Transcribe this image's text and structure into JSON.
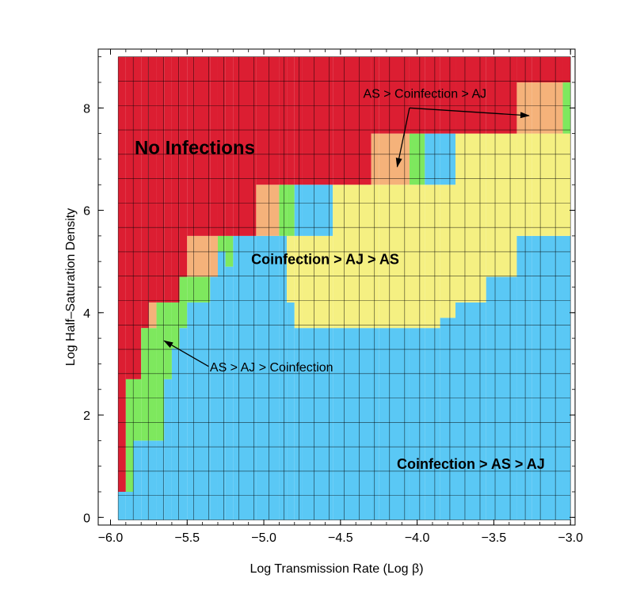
{
  "chart_data": {
    "type": "heatmap",
    "title": "",
    "xlabel": "Log Transmission Rate (Log β)",
    "ylabel": "Log Half–Saturation Density",
    "xlim": [
      -6.0,
      -3.0
    ],
    "ylim": [
      0,
      9
    ],
    "x_ticks": [
      -6.0,
      -5.5,
      -5.0,
      -4.5,
      -4.0,
      -3.5,
      -3.0
    ],
    "x_tick_labels": [
      "−6.0",
      "−5.5",
      "−5.0",
      "−4.5",
      "−4.0",
      "−3.5",
      "−3.0"
    ],
    "y_ticks": [
      0,
      2,
      4,
      6,
      8
    ],
    "y_tick_labels": [
      "0",
      "2",
      "4",
      "6",
      "8"
    ],
    "grid": true,
    "colors": {
      "No Infections": "#dc1e32",
      "AS > Coinfection > AJ": "#f5b27a",
      "AS > AJ > Coinfection": "#7ee85e",
      "Coinfection > AJ > AS": "#f5f082",
      "Coinfection > AS > AJ": "#5ac8f5"
    },
    "grid_x_range": [
      -5.95,
      -3.0
    ],
    "grid_y_range": [
      -0.05,
      9.0
    ],
    "column_boundaries": [
      {
        "x_from": -5.95,
        "x_to": -5.9,
        "no_infection_above": 0.5,
        "regions": [
          {
            "from": -0.05,
            "to": 0.5,
            "outcome": "Coinfection > AS > AJ"
          }
        ]
      },
      {
        "x_from": -5.9,
        "x_to": -5.85,
        "no_infection_above": 2.7,
        "regions": [
          {
            "from": -0.05,
            "to": 0.5,
            "outcome": "Coinfection > AS > AJ"
          },
          {
            "from": 0.5,
            "to": 2.7,
            "outcome": "AS > AJ > Coinfection"
          }
        ]
      },
      {
        "x_from": -5.85,
        "x_to": -5.8,
        "no_infection_above": 2.7,
        "regions": [
          {
            "from": -0.05,
            "to": 1.5,
            "outcome": "Coinfection > AS > AJ"
          },
          {
            "from": 1.5,
            "to": 2.7,
            "outcome": "AS > AJ > Coinfection"
          }
        ]
      },
      {
        "x_from": -5.8,
        "x_to": -5.75,
        "no_infection_above": 3.7,
        "regions": [
          {
            "from": -0.05,
            "to": 1.5,
            "outcome": "Coinfection > AS > AJ"
          },
          {
            "from": 1.5,
            "to": 3.7,
            "outcome": "AS > AJ > Coinfection"
          }
        ]
      },
      {
        "x_from": -5.75,
        "x_to": -5.7,
        "no_infection_above": 4.2,
        "regions": [
          {
            "from": -0.05,
            "to": 1.5,
            "outcome": "Coinfection > AS > AJ"
          },
          {
            "from": 1.5,
            "to": 3.7,
            "outcome": "AS > AJ > Coinfection"
          },
          {
            "from": 3.7,
            "to": 4.2,
            "outcome": "AS > Coinfection > AJ"
          }
        ]
      },
      {
        "x_from": -5.7,
        "x_to": -5.65,
        "no_infection_above": 4.2,
        "regions": [
          {
            "from": -0.05,
            "to": 1.5,
            "outcome": "Coinfection > AS > AJ"
          },
          {
            "from": 1.5,
            "to": 4.2,
            "outcome": "AS > AJ > Coinfection"
          }
        ]
      },
      {
        "x_from": -5.65,
        "x_to": -5.6,
        "no_infection_above": 4.2,
        "regions": [
          {
            "from": -0.05,
            "to": 2.7,
            "outcome": "Coinfection > AS > AJ"
          },
          {
            "from": 2.7,
            "to": 4.2,
            "outcome": "AS > AJ > Coinfection"
          }
        ]
      },
      {
        "x_from": -5.6,
        "x_to": -5.55,
        "no_infection_above": 4.2,
        "regions": [
          {
            "from": -0.05,
            "to": 3.3,
            "outcome": "Coinfection > AS > AJ"
          },
          {
            "from": 3.3,
            "to": 4.2,
            "outcome": "AS > AJ > Coinfection"
          }
        ]
      },
      {
        "x_from": -5.55,
        "x_to": -5.5,
        "no_infection_above": 4.7,
        "regions": [
          {
            "from": -0.05,
            "to": 3.7,
            "outcome": "Coinfection > AS > AJ"
          },
          {
            "from": 3.7,
            "to": 4.7,
            "outcome": "AS > AJ > Coinfection"
          }
        ]
      },
      {
        "x_from": -5.5,
        "x_to": -5.45,
        "no_infection_above": 5.5,
        "regions": [
          {
            "from": -0.05,
            "to": 4.2,
            "outcome": "Coinfection > AS > AJ"
          },
          {
            "from": 4.2,
            "to": 4.7,
            "outcome": "AS > AJ > Coinfection"
          },
          {
            "from": 4.7,
            "to": 5.5,
            "outcome": "AS > Coinfection > AJ"
          }
        ]
      },
      {
        "x_from": -5.45,
        "x_to": -5.35,
        "no_infection_above": 5.5,
        "regions": [
          {
            "from": -0.05,
            "to": 4.2,
            "outcome": "Coinfection > AS > AJ"
          },
          {
            "from": 4.2,
            "to": 4.7,
            "outcome": "AS > AJ > Coinfection"
          },
          {
            "from": 4.7,
            "to": 5.5,
            "outcome": "AS > Coinfection > AJ"
          }
        ]
      },
      {
        "x_from": -5.35,
        "x_to": -5.3,
        "no_infection_above": 5.5,
        "regions": [
          {
            "from": -0.05,
            "to": 4.7,
            "outcome": "Coinfection > AS > AJ"
          },
          {
            "from": 4.7,
            "to": 5.5,
            "outcome": "AS > Coinfection > AJ"
          }
        ]
      },
      {
        "x_from": -5.3,
        "x_to": -5.25,
        "no_infection_above": 5.5,
        "regions": [
          {
            "from": -0.05,
            "to": 5.2,
            "outcome": "Coinfection > AS > AJ"
          },
          {
            "from": 5.2,
            "to": 5.5,
            "outcome": "AS > AJ > Coinfection"
          }
        ]
      },
      {
        "x_from": -5.25,
        "x_to": -5.2,
        "no_infection_above": 5.5,
        "regions": [
          {
            "from": -0.05,
            "to": 4.9,
            "outcome": "Coinfection > AS > AJ"
          },
          {
            "from": 4.9,
            "to": 5.5,
            "outcome": "AS > AJ > Coinfection"
          }
        ]
      },
      {
        "x_from": -5.2,
        "x_to": -5.05,
        "no_infection_above": 5.5,
        "regions": [
          {
            "from": -0.05,
            "to": 5.5,
            "outcome": "Coinfection > AS > AJ"
          }
        ]
      },
      {
        "x_from": -5.05,
        "x_to": -4.9,
        "no_infection_above": 6.5,
        "regions": [
          {
            "from": -0.05,
            "to": 5.5,
            "outcome": "Coinfection > AS > AJ"
          },
          {
            "from": 5.5,
            "to": 6.5,
            "outcome": "AS > Coinfection > AJ"
          }
        ]
      },
      {
        "x_from": -4.9,
        "x_to": -4.85,
        "no_infection_above": 6.5,
        "regions": [
          {
            "from": -0.05,
            "to": 5.5,
            "outcome": "Coinfection > AS > AJ"
          },
          {
            "from": 5.5,
            "to": 6.5,
            "outcome": "AS > AJ > Coinfection"
          }
        ]
      },
      {
        "x_from": -4.85,
        "x_to": -4.8,
        "no_infection_above": 6.5,
        "regions": [
          {
            "from": -0.05,
            "to": 4.2,
            "outcome": "Coinfection > AS > AJ"
          },
          {
            "from": 4.2,
            "to": 5.5,
            "outcome": "Coinfection > AJ > AS"
          },
          {
            "from": 5.5,
            "to": 6.5,
            "outcome": "AS > AJ > Coinfection"
          }
        ]
      },
      {
        "x_from": -4.8,
        "x_to": -4.75,
        "no_infection_above": 6.5,
        "regions": [
          {
            "from": -0.05,
            "to": 3.7,
            "outcome": "Coinfection > AS > AJ"
          },
          {
            "from": 3.7,
            "to": 5.5,
            "outcome": "Coinfection > AJ > AS"
          },
          {
            "from": 5.5,
            "to": 6.5,
            "outcome": "Coinfection > AS > AJ"
          }
        ]
      },
      {
        "x_from": -4.75,
        "x_to": -4.55,
        "no_infection_above": 6.5,
        "regions": [
          {
            "from": -0.05,
            "to": 3.7,
            "outcome": "Coinfection > AS > AJ"
          },
          {
            "from": 3.7,
            "to": 5.5,
            "outcome": "Coinfection > AJ > AS"
          },
          {
            "from": 5.5,
            "to": 6.5,
            "outcome": "Coinfection > AS > AJ"
          }
        ]
      },
      {
        "x_from": -4.55,
        "x_to": -4.3,
        "no_infection_above": 6.5,
        "regions": [
          {
            "from": -0.05,
            "to": 3.7,
            "outcome": "Coinfection > AS > AJ"
          },
          {
            "from": 3.7,
            "to": 6.5,
            "outcome": "Coinfection > AJ > AS"
          }
        ]
      },
      {
        "x_from": -4.3,
        "x_to": -4.25,
        "no_infection_above": 7.5,
        "regions": [
          {
            "from": -0.05,
            "to": 3.7,
            "outcome": "Coinfection > AS > AJ"
          },
          {
            "from": 3.7,
            "to": 6.5,
            "outcome": "Coinfection > AJ > AS"
          },
          {
            "from": 6.5,
            "to": 7.5,
            "outcome": "AS > Coinfection > AJ"
          }
        ]
      },
      {
        "x_from": -4.25,
        "x_to": -4.05,
        "no_infection_above": 7.5,
        "regions": [
          {
            "from": -0.05,
            "to": 3.7,
            "outcome": "Coinfection > AS > AJ"
          },
          {
            "from": 3.7,
            "to": 6.5,
            "outcome": "Coinfection > AJ > AS"
          },
          {
            "from": 6.5,
            "to": 7.5,
            "outcome": "AS > Coinfection > AJ"
          }
        ]
      },
      {
        "x_from": -4.05,
        "x_to": -3.95,
        "no_infection_above": 7.5,
        "regions": [
          {
            "from": -0.05,
            "to": 3.7,
            "outcome": "Coinfection > AS > AJ"
          },
          {
            "from": 3.7,
            "to": 6.5,
            "outcome": "Coinfection > AJ > AS"
          },
          {
            "from": 6.5,
            "to": 7.5,
            "outcome": "AS > AJ > Coinfection"
          }
        ]
      },
      {
        "x_from": -3.95,
        "x_to": -3.85,
        "no_infection_above": 7.5,
        "regions": [
          {
            "from": -0.05,
            "to": 3.7,
            "outcome": "Coinfection > AS > AJ"
          },
          {
            "from": 3.7,
            "to": 6.5,
            "outcome": "Coinfection > AJ > AS"
          },
          {
            "from": 6.5,
            "to": 7.5,
            "outcome": "Coinfection > AS > AJ"
          }
        ]
      },
      {
        "x_from": -3.85,
        "x_to": -3.75,
        "no_infection_above": 7.5,
        "regions": [
          {
            "from": -0.05,
            "to": 3.9,
            "outcome": "Coinfection > AS > AJ"
          },
          {
            "from": 3.9,
            "to": 6.5,
            "outcome": "Coinfection > AJ > AS"
          },
          {
            "from": 6.5,
            "to": 7.5,
            "outcome": "Coinfection > AS > AJ"
          }
        ]
      },
      {
        "x_from": -3.75,
        "x_to": -3.55,
        "no_infection_above": 7.5,
        "regions": [
          {
            "from": -0.05,
            "to": 4.2,
            "outcome": "Coinfection > AS > AJ"
          },
          {
            "from": 4.2,
            "to": 7.5,
            "outcome": "Coinfection > AJ > AS"
          }
        ]
      },
      {
        "x_from": -3.55,
        "x_to": -3.35,
        "no_infection_above": 7.5,
        "regions": [
          {
            "from": -0.05,
            "to": 4.7,
            "outcome": "Coinfection > AS > AJ"
          },
          {
            "from": 4.7,
            "to": 7.5,
            "outcome": "Coinfection > AJ > AS"
          }
        ]
      },
      {
        "x_from": -3.35,
        "x_to": -3.25,
        "no_infection_above": 8.5,
        "regions": [
          {
            "from": -0.05,
            "to": 5.5,
            "outcome": "Coinfection > AS > AJ"
          },
          {
            "from": 5.5,
            "to": 7.5,
            "outcome": "Coinfection > AJ > AS"
          },
          {
            "from": 7.5,
            "to": 8.5,
            "outcome": "AS > Coinfection > AJ"
          }
        ]
      },
      {
        "x_from": -3.25,
        "x_to": -3.05,
        "no_infection_above": 8.5,
        "regions": [
          {
            "from": -0.05,
            "to": 5.5,
            "outcome": "Coinfection > AS > AJ"
          },
          {
            "from": 5.5,
            "to": 7.5,
            "outcome": "Coinfection > AJ > AS"
          },
          {
            "from": 7.5,
            "to": 8.5,
            "outcome": "AS > Coinfection > AJ"
          }
        ]
      },
      {
        "x_from": -3.05,
        "x_to": -3.0,
        "no_infection_above": 8.5,
        "regions": [
          {
            "from": -0.05,
            "to": 5.5,
            "outcome": "Coinfection > AS > AJ"
          },
          {
            "from": 5.5,
            "to": 7.5,
            "outcome": "Coinfection > AJ > AS"
          },
          {
            "from": 7.5,
            "to": 8.5,
            "outcome": "AS > AJ > Coinfection"
          }
        ]
      }
    ],
    "annotations": [
      {
        "text": "No Infections",
        "x": -5.45,
        "y": 7.1,
        "style": "big"
      },
      {
        "text": "Coinfection > AJ > AS",
        "x": -4.6,
        "y": 4.95,
        "style": "medium"
      },
      {
        "text": "Coinfection > AS > AJ",
        "x": -3.65,
        "y": 0.95,
        "style": "medium"
      },
      {
        "text": "AS > Coinfection > AJ",
        "x": -3.95,
        "y": 8.2,
        "style": "label",
        "arrows": [
          {
            "from": [
              -4.05,
              8.0
            ],
            "to": [
              -4.13,
              6.85
            ]
          },
          {
            "from": [
              -4.05,
              8.0
            ],
            "to": [
              -3.27,
              7.85
            ]
          }
        ]
      },
      {
        "text": "AS > AJ > Coinfection",
        "x": -4.95,
        "y": 2.85,
        "style": "label",
        "arrows": [
          {
            "from": [
              -5.36,
              2.95
            ],
            "to": [
              -5.65,
              3.45
            ]
          }
        ]
      }
    ]
  }
}
